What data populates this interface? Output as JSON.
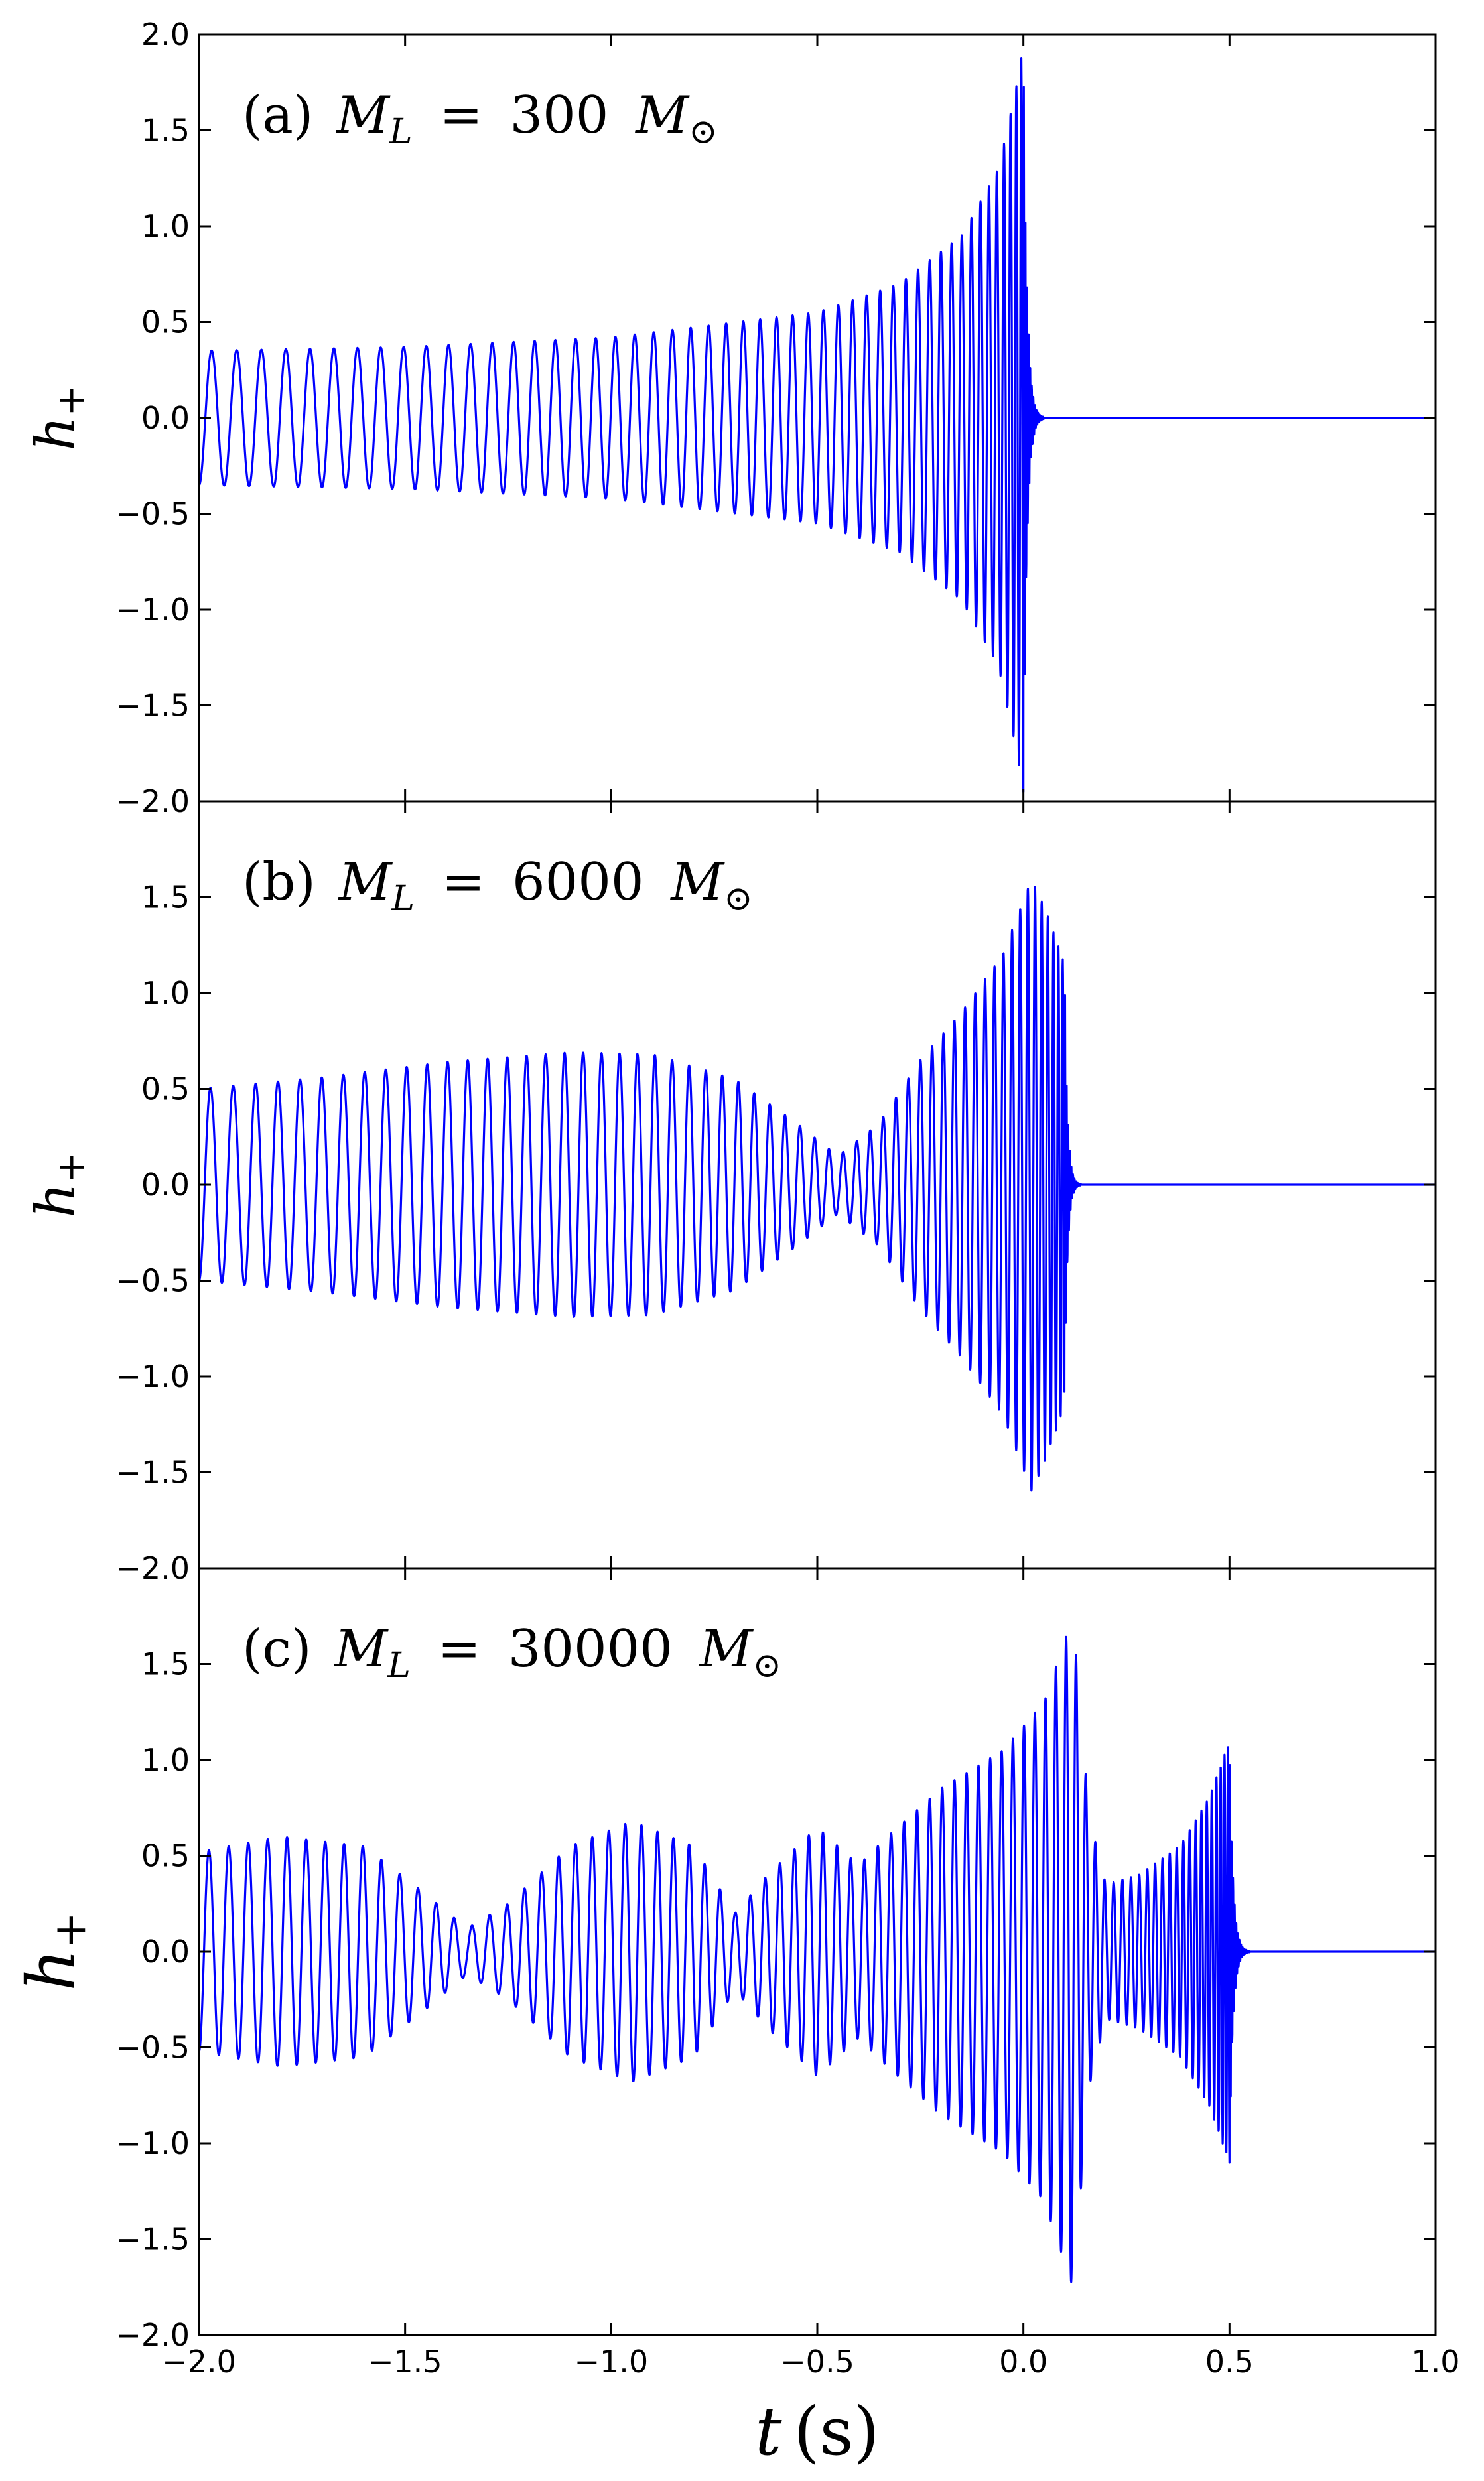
{
  "chart_data": [
    {
      "type": "line",
      "panel_label": "(a) M_L = 300 M_⊙",
      "panel_label_parts": {
        "prefix": "(a)",
        "mass": "300"
      },
      "ylabel": "h+",
      "xlim": [
        -2.0,
        1.0
      ],
      "ylim": [
        -2.0,
        2.0
      ],
      "yticks": [
        "−2.0",
        "−1.5",
        "−1.0",
        "−0.5",
        "0.0",
        "0.5",
        "1.0",
        "1.5",
        "2.0"
      ],
      "yticks_values": [
        -2.0,
        -1.5,
        -1.0,
        -0.5,
        0.0,
        0.5,
        1.0,
        1.5,
        2.0
      ],
      "grid": false,
      "series": [
        {
          "color": "#0000ff",
          "waveform": {
            "t_start": -2.0,
            "t_merger": 0.0,
            "t_end": 1.0,
            "cycles": 50,
            "envelope": [
              [
                -2.0,
                0.35
              ],
              [
                -1.5,
                0.37
              ],
              [
                -1.0,
                0.42
              ],
              [
                -0.5,
                0.55
              ],
              [
                -0.3,
                0.7
              ],
              [
                -0.15,
                0.95
              ],
              [
                -0.06,
                1.3
              ],
              [
                -0.02,
                1.7
              ],
              [
                0.0,
                1.95
              ]
            ],
            "ringdown_end": 0.05,
            "after_merger": 0.0
          }
        }
      ]
    },
    {
      "type": "line",
      "panel_label": "(b) M_L = 6000 M_⊙",
      "panel_label_parts": {
        "prefix": "(b)",
        "mass": "6000"
      },
      "ylabel": "h+",
      "xlim": [
        -2.0,
        1.0
      ],
      "ylim": [
        -2.0,
        2.0
      ],
      "yticks": [
        "−2.0",
        "−1.5",
        "−1.0",
        "−0.5",
        "0.0",
        "0.5",
        "1.0",
        "1.5"
      ],
      "yticks_values": [
        -2.0,
        -1.5,
        -1.0,
        -0.5,
        0.0,
        0.5,
        1.0,
        1.5
      ],
      "grid": false,
      "series": [
        {
          "color": "#0000ff",
          "waveform": {
            "t_start": -2.0,
            "t_merger": 0.1,
            "t_end": 1.0,
            "cycles": 58,
            "envelope": [
              [
                -2.0,
                0.5
              ],
              [
                -1.7,
                0.56
              ],
              [
                -1.4,
                0.64
              ],
              [
                -1.1,
                0.69
              ],
              [
                -0.9,
                0.68
              ],
              [
                -0.7,
                0.55
              ],
              [
                -0.55,
                0.32
              ],
              [
                -0.45,
                0.15
              ],
              [
                -0.35,
                0.32
              ],
              [
                -0.25,
                0.65
              ],
              [
                -0.15,
                0.9
              ],
              [
                -0.05,
                1.2
              ],
              [
                0.02,
                1.6
              ],
              [
                0.06,
                1.4
              ],
              [
                0.1,
                1.15
              ]
            ],
            "ringdown_end": 0.14,
            "after_merger": 0.0
          }
        }
      ]
    },
    {
      "type": "line",
      "panel_label": "(c) M_L = 30000 M_⊙",
      "panel_label_parts": {
        "prefix": "(c)",
        "mass": "30000"
      },
      "ylabel": "h+",
      "xlabel": "t (s)",
      "xlim": [
        -2.0,
        1.0
      ],
      "ylim": [
        -2.0,
        2.0
      ],
      "xticks": [
        "−2.0",
        "−1.5",
        "−1.0",
        "−0.5",
        "0.0",
        "0.5",
        "1.0"
      ],
      "xticks_values": [
        -2.0,
        -1.5,
        -1.0,
        -0.5,
        0.0,
        0.5,
        1.0
      ],
      "yticks": [
        "−2.0",
        "−1.5",
        "−1.0",
        "−0.5",
        "0.0",
        "0.5",
        "1.0",
        "1.5"
      ],
      "yticks_values": [
        -2.0,
        -1.5,
        -1.0,
        -0.5,
        0.0,
        0.5,
        1.0,
        1.5
      ],
      "grid": false,
      "series": [
        {
          "color": "#0000ff",
          "waveform": {
            "t_start": -2.0,
            "t_merger": 0.5,
            "t_end": 1.0,
            "cycles": 80,
            "envelope": [
              [
                -2.0,
                0.52
              ],
              [
                -1.8,
                0.6
              ],
              [
                -1.6,
                0.55
              ],
              [
                -1.45,
                0.3
              ],
              [
                -1.35,
                0.12
              ],
              [
                -1.25,
                0.25
              ],
              [
                -1.1,
                0.55
              ],
              [
                -0.95,
                0.68
              ],
              [
                -0.8,
                0.55
              ],
              [
                -0.7,
                0.2
              ],
              [
                -0.62,
                0.4
              ],
              [
                -0.5,
                0.65
              ],
              [
                -0.4,
                0.45
              ],
              [
                -0.33,
                0.6
              ],
              [
                -0.2,
                0.85
              ],
              [
                -0.05,
                1.05
              ],
              [
                0.05,
                1.3
              ],
              [
                0.12,
                1.75
              ],
              [
                0.16,
                0.7
              ],
              [
                0.2,
                0.35
              ],
              [
                0.28,
                0.4
              ],
              [
                0.38,
                0.55
              ],
              [
                0.45,
                0.8
              ],
              [
                0.5,
                1.1
              ]
            ],
            "ringdown_end": 0.55,
            "after_merger": 0.0
          }
        }
      ]
    }
  ]
}
